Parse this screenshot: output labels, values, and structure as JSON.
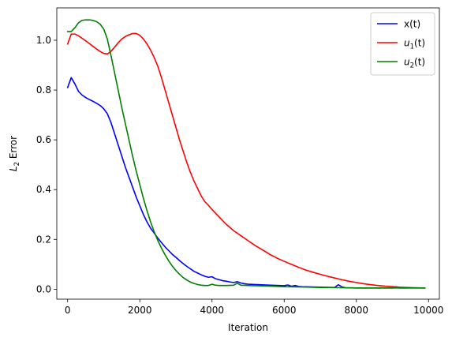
{
  "chart_data": {
    "type": "line",
    "title": "",
    "xlabel": "Iteration",
    "ylabel": {
      "base": "L",
      "sub": "2",
      "rest": " Error"
    },
    "xlim": [
      -300,
      10300
    ],
    "ylim": [
      -0.04,
      1.13
    ],
    "xticks": [
      0,
      2000,
      4000,
      6000,
      8000,
      10000
    ],
    "xtick_labels": [
      "0",
      "2000",
      "4000",
      "6000",
      "8000",
      "10000"
    ],
    "yticks": [
      0.0,
      0.2,
      0.4,
      0.6,
      0.8,
      1.0
    ],
    "ytick_labels": [
      "0.0",
      "0.2",
      "0.4",
      "0.6",
      "0.8",
      "1.0"
    ],
    "grid": false,
    "legend_position": "top-right",
    "series": [
      {
        "name": "x(t)",
        "label": {
          "base": "x(t)",
          "sub": "",
          "rest": ""
        },
        "color": "#0000ff",
        "x": [
          0,
          100,
          200,
          300,
          400,
          500,
          600,
          700,
          800,
          900,
          1000,
          1100,
          1200,
          1300,
          1400,
          1500,
          1600,
          1700,
          1800,
          1900,
          2000,
          2100,
          2200,
          2300,
          2400,
          2500,
          2600,
          2700,
          2800,
          2900,
          3000,
          3100,
          3200,
          3300,
          3400,
          3500,
          3600,
          3700,
          3800,
          3900,
          4000,
          4100,
          4200,
          4300,
          4400,
          4500,
          4600,
          4700,
          4800,
          4900,
          5000,
          5500,
          6000,
          6100,
          6200,
          6300,
          6400,
          6500,
          7000,
          7400,
          7500,
          7600,
          7700,
          8000,
          8500,
          9000,
          9100,
          9200,
          9500,
          9900
        ],
        "y": [
          0.81,
          0.85,
          0.825,
          0.795,
          0.78,
          0.77,
          0.762,
          0.755,
          0.747,
          0.738,
          0.725,
          0.705,
          0.67,
          0.625,
          0.58,
          0.535,
          0.49,
          0.45,
          0.41,
          0.37,
          0.335,
          0.3,
          0.27,
          0.245,
          0.225,
          0.205,
          0.187,
          0.17,
          0.155,
          0.14,
          0.128,
          0.115,
          0.103,
          0.092,
          0.082,
          0.072,
          0.065,
          0.058,
          0.052,
          0.048,
          0.05,
          0.042,
          0.038,
          0.034,
          0.032,
          0.029,
          0.027,
          0.03,
          0.025,
          0.022,
          0.02,
          0.017,
          0.014,
          0.017,
          0.012,
          0.015,
          0.011,
          0.01,
          0.008,
          0.007,
          0.018,
          0.009,
          0.006,
          0.005,
          0.005,
          0.005,
          0.01,
          0.005,
          0.005,
          0.005
        ]
      },
      {
        "name": "u1(t)",
        "label": {
          "base": "u",
          "sub": "1",
          "rest": "(t)"
        },
        "color": "#ff0000",
        "x": [
          0,
          100,
          200,
          300,
          400,
          500,
          600,
          700,
          800,
          900,
          1000,
          1100,
          1200,
          1300,
          1400,
          1500,
          1600,
          1700,
          1800,
          1900,
          2000,
          2100,
          2200,
          2300,
          2400,
          2500,
          2600,
          2700,
          2800,
          2900,
          3000,
          3100,
          3200,
          3300,
          3400,
          3500,
          3600,
          3700,
          3800,
          3900,
          4000,
          4200,
          4400,
          4600,
          4800,
          5000,
          5200,
          5400,
          5600,
          5800,
          6000,
          6200,
          6400,
          6600,
          6800,
          7000,
          7200,
          7400,
          7600,
          7800,
          8000,
          8200,
          8400,
          8600,
          8800,
          9000,
          9200,
          9400,
          9600,
          9900
        ],
        "y": [
          0.985,
          1.025,
          1.025,
          1.018,
          1.008,
          0.998,
          0.987,
          0.976,
          0.965,
          0.955,
          0.947,
          0.945,
          0.955,
          0.972,
          0.99,
          1.005,
          1.015,
          1.022,
          1.027,
          1.027,
          1.02,
          1.005,
          0.985,
          0.96,
          0.93,
          0.895,
          0.85,
          0.8,
          0.75,
          0.7,
          0.65,
          0.6,
          0.555,
          0.51,
          0.47,
          0.435,
          0.405,
          0.375,
          0.352,
          0.337,
          0.32,
          0.29,
          0.26,
          0.235,
          0.215,
          0.195,
          0.175,
          0.158,
          0.14,
          0.125,
          0.112,
          0.1,
          0.088,
          0.077,
          0.068,
          0.06,
          0.052,
          0.045,
          0.038,
          0.032,
          0.027,
          0.022,
          0.018,
          0.015,
          0.012,
          0.01,
          0.008,
          0.007,
          0.006,
          0.005
        ]
      },
      {
        "name": "u2(t)",
        "label": {
          "base": "u",
          "sub": "2",
          "rest": "(t)"
        },
        "color": "#008000",
        "x": [
          0,
          100,
          200,
          300,
          400,
          500,
          600,
          700,
          800,
          900,
          1000,
          1100,
          1200,
          1300,
          1400,
          1500,
          1600,
          1700,
          1800,
          1900,
          2000,
          2100,
          2200,
          2300,
          2400,
          2500,
          2600,
          2700,
          2800,
          2900,
          3000,
          3100,
          3200,
          3300,
          3400,
          3500,
          3600,
          3700,
          3800,
          3900,
          4000,
          4100,
          4200,
          4400,
          4600,
          4700,
          4800,
          5000,
          5500,
          6000,
          6500,
          7000,
          7500,
          8000,
          8500,
          9000,
          9500,
          9900
        ],
        "y": [
          1.035,
          1.035,
          1.05,
          1.07,
          1.08,
          1.082,
          1.082,
          1.08,
          1.075,
          1.065,
          1.045,
          1.005,
          0.94,
          0.87,
          0.8,
          0.73,
          0.665,
          0.6,
          0.535,
          0.475,
          0.42,
          0.365,
          0.315,
          0.27,
          0.23,
          0.195,
          0.165,
          0.138,
          0.114,
          0.093,
          0.075,
          0.06,
          0.047,
          0.037,
          0.029,
          0.023,
          0.019,
          0.016,
          0.015,
          0.015,
          0.02,
          0.016,
          0.015,
          0.015,
          0.016,
          0.024,
          0.016,
          0.015,
          0.013,
          0.01,
          0.009,
          0.007,
          0.006,
          0.005,
          0.005,
          0.005,
          0.005,
          0.005
        ]
      }
    ]
  }
}
